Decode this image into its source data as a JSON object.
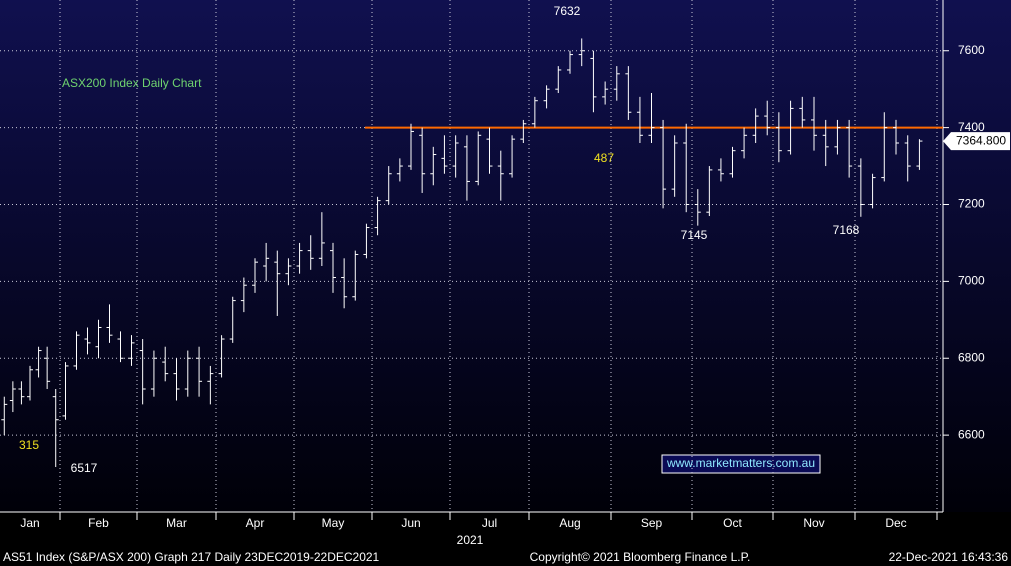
{
  "chart_data": {
    "type": "ohlc",
    "title": "ASX200 Index Daily Chart",
    "categories": [
      "Jan",
      "Feb",
      "Mar",
      "Apr",
      "May",
      "Jun",
      "Jul",
      "Aug",
      "Sep",
      "Oct",
      "Nov",
      "Dec"
    ],
    "year_label": "2021",
    "color": "#ffffff",
    "bars": [
      [
        [
          6640,
          6700,
          6600,
          6680
        ],
        [
          6690,
          6740,
          6660,
          6720
        ],
        [
          6720,
          6740,
          6680,
          6700
        ],
        [
          6700,
          6780,
          6690,
          6770
        ],
        [
          6770,
          6830,
          6750,
          6820
        ],
        [
          6800,
          6830,
          6720,
          6740
        ],
        [
          6700,
          6720,
          6517,
          6640
        ]
      ],
      [
        [
          6650,
          6790,
          6640,
          6780
        ],
        [
          6780,
          6870,
          6770,
          6860
        ],
        [
          6850,
          6880,
          6810,
          6840
        ],
        [
          6830,
          6900,
          6800,
          6880
        ],
        [
          6880,
          6940,
          6840,
          6860
        ],
        [
          6850,
          6870,
          6790,
          6800
        ],
        [
          6800,
          6860,
          6780,
          6840
        ]
      ],
      [
        [
          6820,
          6850,
          6680,
          6720
        ],
        [
          6720,
          6820,
          6700,
          6800
        ],
        [
          6790,
          6830,
          6740,
          6760
        ],
        [
          6760,
          6800,
          6690,
          6720
        ],
        [
          6720,
          6820,
          6700,
          6800
        ],
        [
          6800,
          6830,
          6700,
          6740
        ],
        [
          6740,
          6780,
          6680,
          6760
        ]
      ],
      [
        [
          6760,
          6860,
          6750,
          6850
        ],
        [
          6850,
          6960,
          6840,
          6950
        ],
        [
          6950,
          7010,
          6920,
          6990
        ],
        [
          6990,
          7060,
          6970,
          7050
        ],
        [
          7040,
          7100,
          7000,
          7060
        ],
        [
          7050,
          7080,
          6910,
          7020
        ],
        [
          7020,
          7060,
          6990,
          7040
        ]
      ],
      [
        [
          7040,
          7100,
          7020,
          7080
        ],
        [
          7080,
          7120,
          7030,
          7060
        ],
        [
          7060,
          7180,
          7040,
          7100
        ],
        [
          7080,
          7100,
          6970,
          7010
        ],
        [
          7010,
          7060,
          6930,
          6960
        ],
        [
          6960,
          7080,
          6950,
          7070
        ],
        [
          7070,
          7150,
          7060,
          7140
        ]
      ],
      [
        [
          7140,
          7220,
          7120,
          7210
        ],
        [
          7210,
          7300,
          7200,
          7280
        ],
        [
          7280,
          7320,
          7260,
          7300
        ],
        [
          7300,
          7410,
          7290,
          7390
        ],
        [
          7380,
          7400,
          7230,
          7280
        ],
        [
          7280,
          7350,
          7250,
          7330
        ],
        [
          7320,
          7380,
          7280,
          7300
        ]
      ],
      [
        [
          7300,
          7380,
          7270,
          7360
        ],
        [
          7350,
          7380,
          7210,
          7260
        ],
        [
          7260,
          7390,
          7250,
          7380
        ],
        [
          7370,
          7400,
          7280,
          7300
        ],
        [
          7300,
          7340,
          7210,
          7280
        ],
        [
          7280,
          7380,
          7270,
          7370
        ],
        [
          7370,
          7420,
          7360,
          7410
        ]
      ],
      [
        [
          7410,
          7480,
          7400,
          7470
        ],
        [
          7470,
          7510,
          7450,
          7500
        ],
        [
          7500,
          7560,
          7490,
          7550
        ],
        [
          7550,
          7600,
          7540,
          7590
        ],
        [
          7590,
          7632,
          7560,
          7600
        ],
        [
          7580,
          7600,
          7440,
          7480
        ],
        [
          7480,
          7520,
          7460,
          7500
        ]
      ],
      [
        [
          7500,
          7560,
          7470,
          7540
        ],
        [
          7540,
          7560,
          7420,
          7440
        ],
        [
          7440,
          7480,
          7360,
          7380
        ],
        [
          7380,
          7490,
          7360,
          7400
        ],
        [
          7400,
          7420,
          7190,
          7240
        ],
        [
          7240,
          7380,
          7220,
          7360
        ],
        [
          7360,
          7410,
          7180,
          7200
        ]
      ],
      [
        [
          7200,
          7240,
          7145,
          7180
        ],
        [
          7180,
          7300,
          7170,
          7290
        ],
        [
          7290,
          7320,
          7260,
          7280
        ],
        [
          7280,
          7350,
          7270,
          7340
        ],
        [
          7340,
          7400,
          7320,
          7380
        ],
        [
          7380,
          7450,
          7360,
          7430
        ],
        [
          7430,
          7470,
          7380,
          7400
        ]
      ],
      [
        [
          7400,
          7440,
          7310,
          7340
        ],
        [
          7340,
          7470,
          7330,
          7450
        ],
        [
          7450,
          7480,
          7400,
          7420
        ],
        [
          7420,
          7480,
          7340,
          7380
        ],
        [
          7380,
          7420,
          7300,
          7350
        ],
        [
          7350,
          7420,
          7330,
          7400
        ],
        [
          7400,
          7420,
          7270,
          7300
        ]
      ],
      [
        [
          7300,
          7320,
          7168,
          7200
        ],
        [
          7200,
          7280,
          7190,
          7270
        ],
        [
          7270,
          7440,
          7260,
          7400
        ],
        [
          7400,
          7420,
          7330,
          7360
        ],
        [
          7360,
          7380,
          7260,
          7300
        ],
        [
          7300,
          7370,
          7290,
          7365
        ]
      ]
    ],
    "ylim": [
      6400,
      7732
    ],
    "yticks": [
      6600,
      6800,
      7000,
      7200,
      7400,
      7600
    ],
    "grid": true,
    "hline": {
      "value": 7400,
      "color": "#ff6a00"
    },
    "last_price": {
      "value": 7364.8,
      "label": "7364.800"
    },
    "annotations": [
      "7632",
      "487",
      "7145",
      "7168",
      "6517",
      "315"
    ],
    "watermark": "www.marketmatters.com.au",
    "footer": [
      "AS51 Index (S&P/ASX 200) Graph 217  Daily 23DEC2019-22DEC2021",
      "Copyright© 2021 Bloomberg Finance L.P.",
      "22-Dec-2021 16:43:36"
    ]
  }
}
